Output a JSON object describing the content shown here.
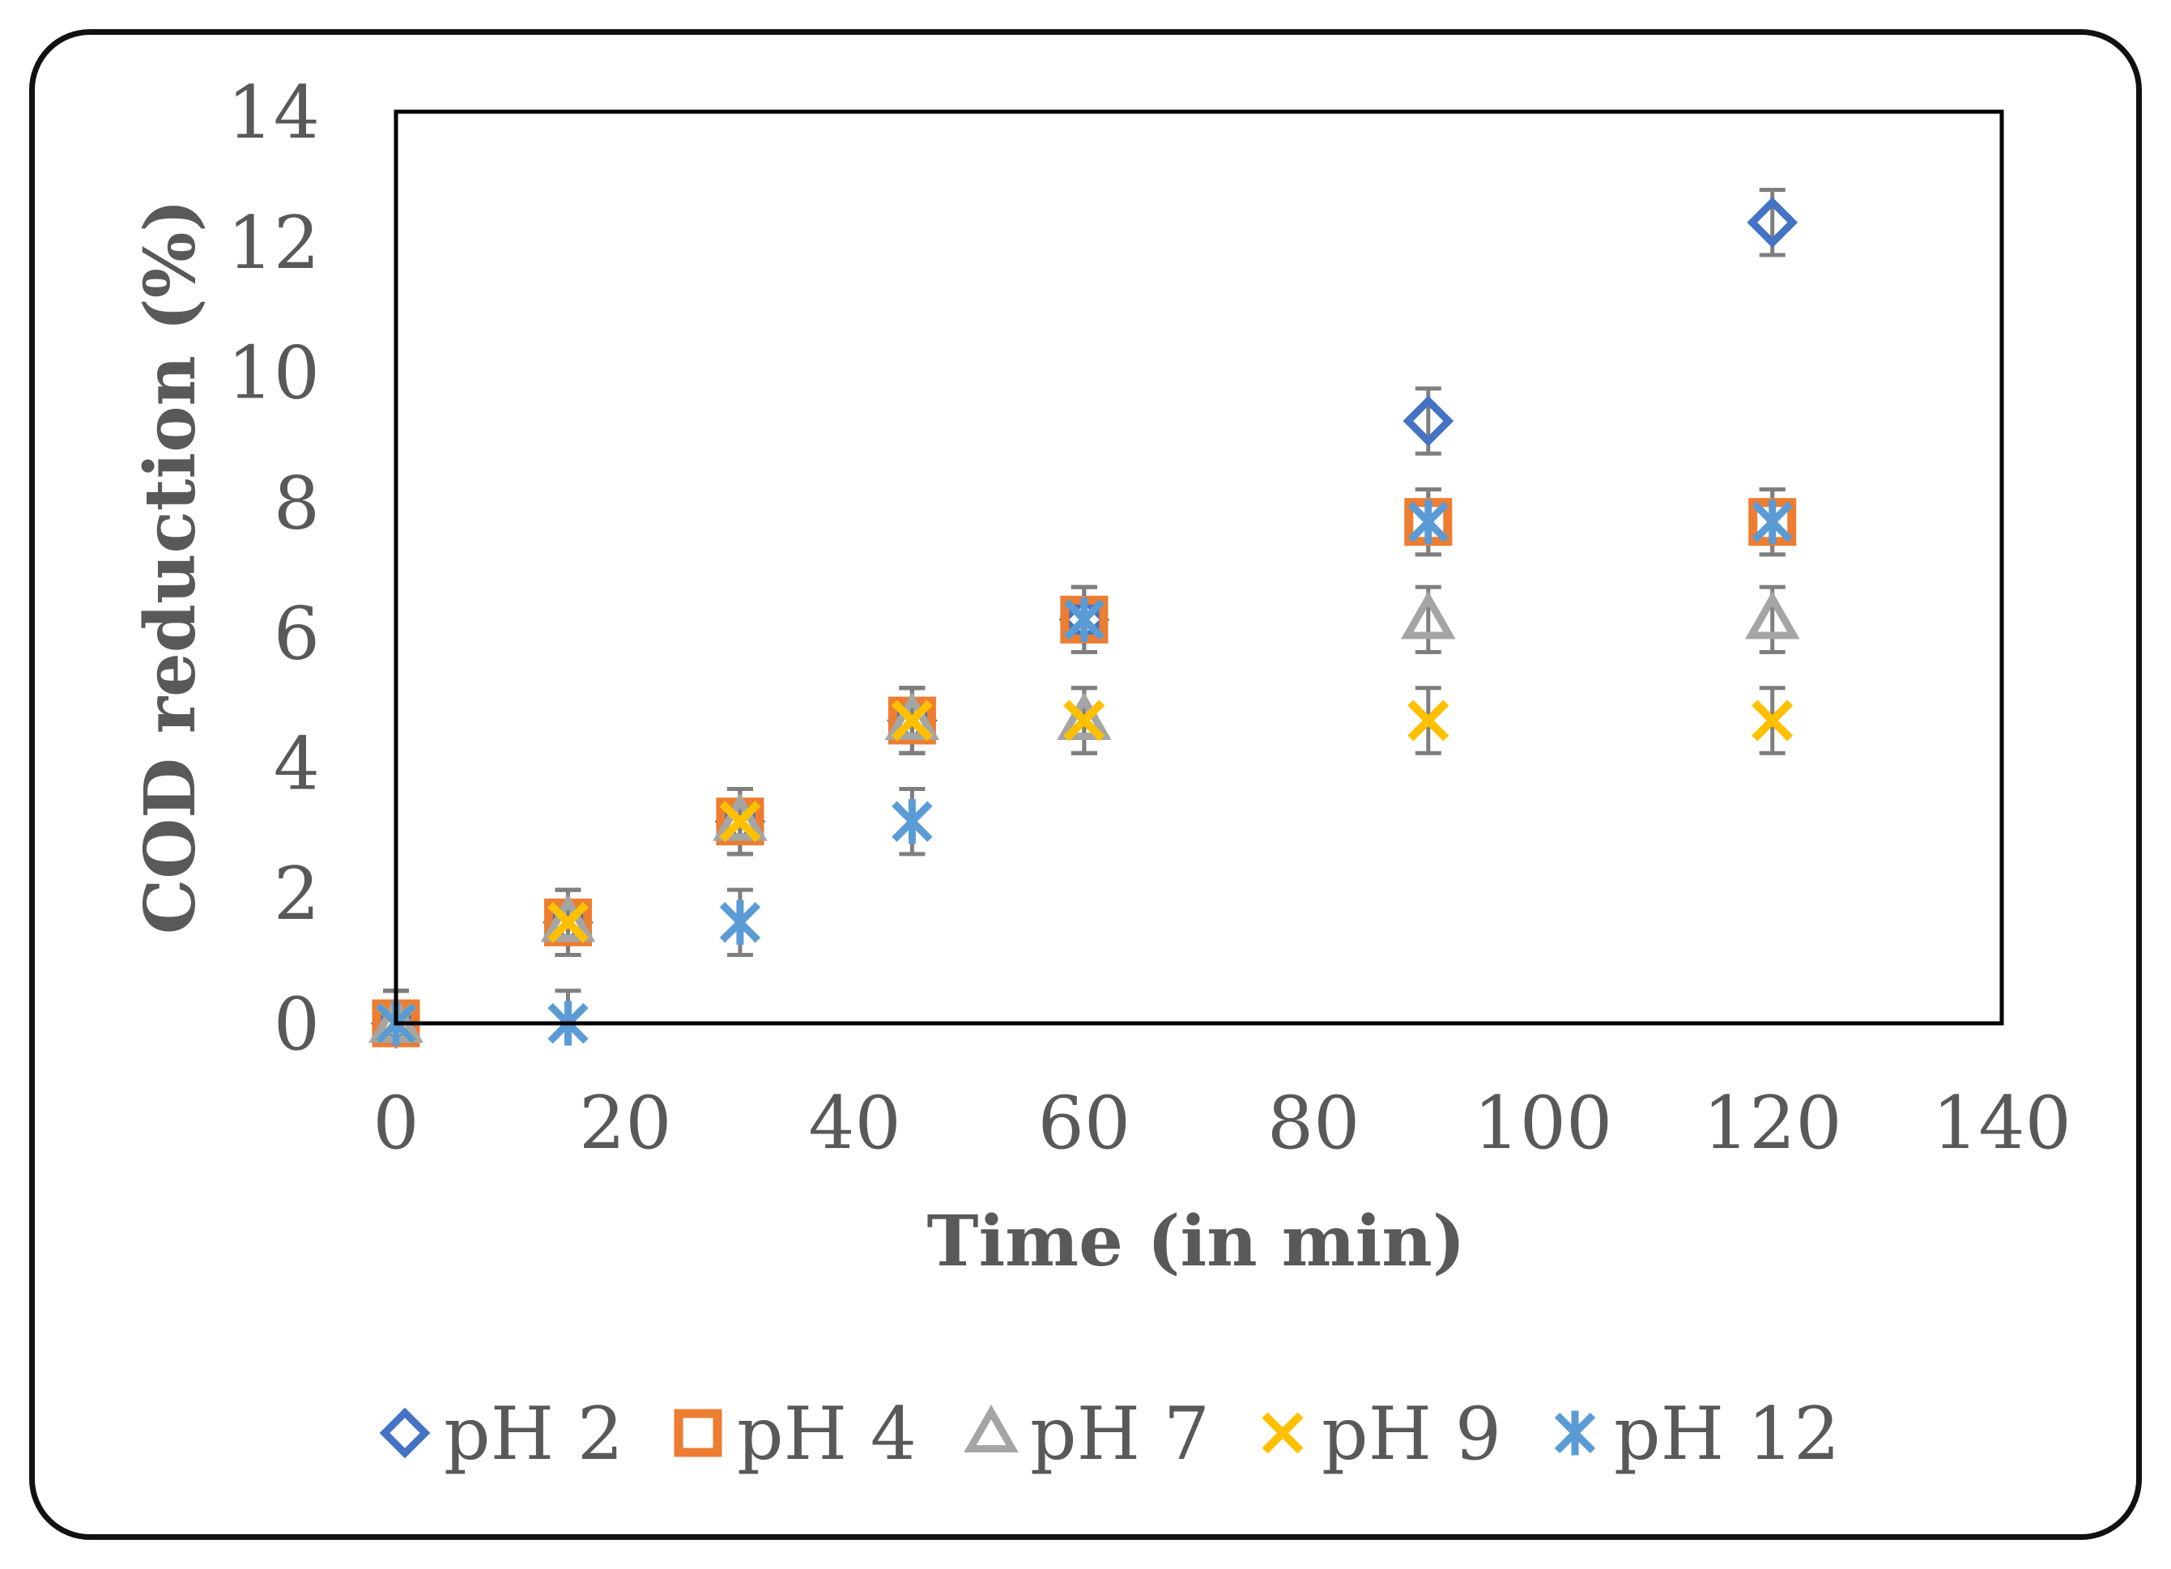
{
  "chart_data": {
    "type": "scatter",
    "title": "",
    "xlabel": "Time (in min)",
    "ylabel": "COD reduction (%)",
    "xlim": [
      0,
      140
    ],
    "ylim": [
      0,
      14
    ],
    "xticks": [
      0,
      20,
      40,
      60,
      80,
      100,
      120,
      140
    ],
    "yticks": [
      0,
      2,
      4,
      6,
      8,
      10,
      12,
      14
    ],
    "x": [
      0,
      15,
      30,
      45,
      60,
      90,
      120
    ],
    "error_bar": 0.5,
    "grid": false,
    "legend_position": "bottom",
    "series": [
      {
        "name": "pH 2",
        "marker": "diamond",
        "color": "#4472c4",
        "values": [
          0,
          1.55,
          3.1,
          4.65,
          6.2,
          9.25,
          12.3
        ]
      },
      {
        "name": "pH 4",
        "marker": "square",
        "color": "#ed7d31",
        "values": [
          0,
          1.55,
          3.1,
          4.65,
          6.2,
          7.7,
          7.7
        ]
      },
      {
        "name": "pH 7",
        "marker": "triangle",
        "color": "#a5a5a5",
        "values": [
          0,
          1.55,
          3.1,
          4.65,
          4.65,
          6.2,
          6.2
        ]
      },
      {
        "name": "pH 9",
        "marker": "x",
        "color": "#ffc000",
        "values": [
          0,
          1.55,
          3.1,
          4.65,
          4.65,
          4.65,
          4.65
        ]
      },
      {
        "name": "pH 12",
        "marker": "star",
        "color": "#5b9bd5",
        "values": [
          0,
          0,
          1.55,
          3.1,
          6.2,
          7.7,
          7.7
        ]
      }
    ]
  }
}
